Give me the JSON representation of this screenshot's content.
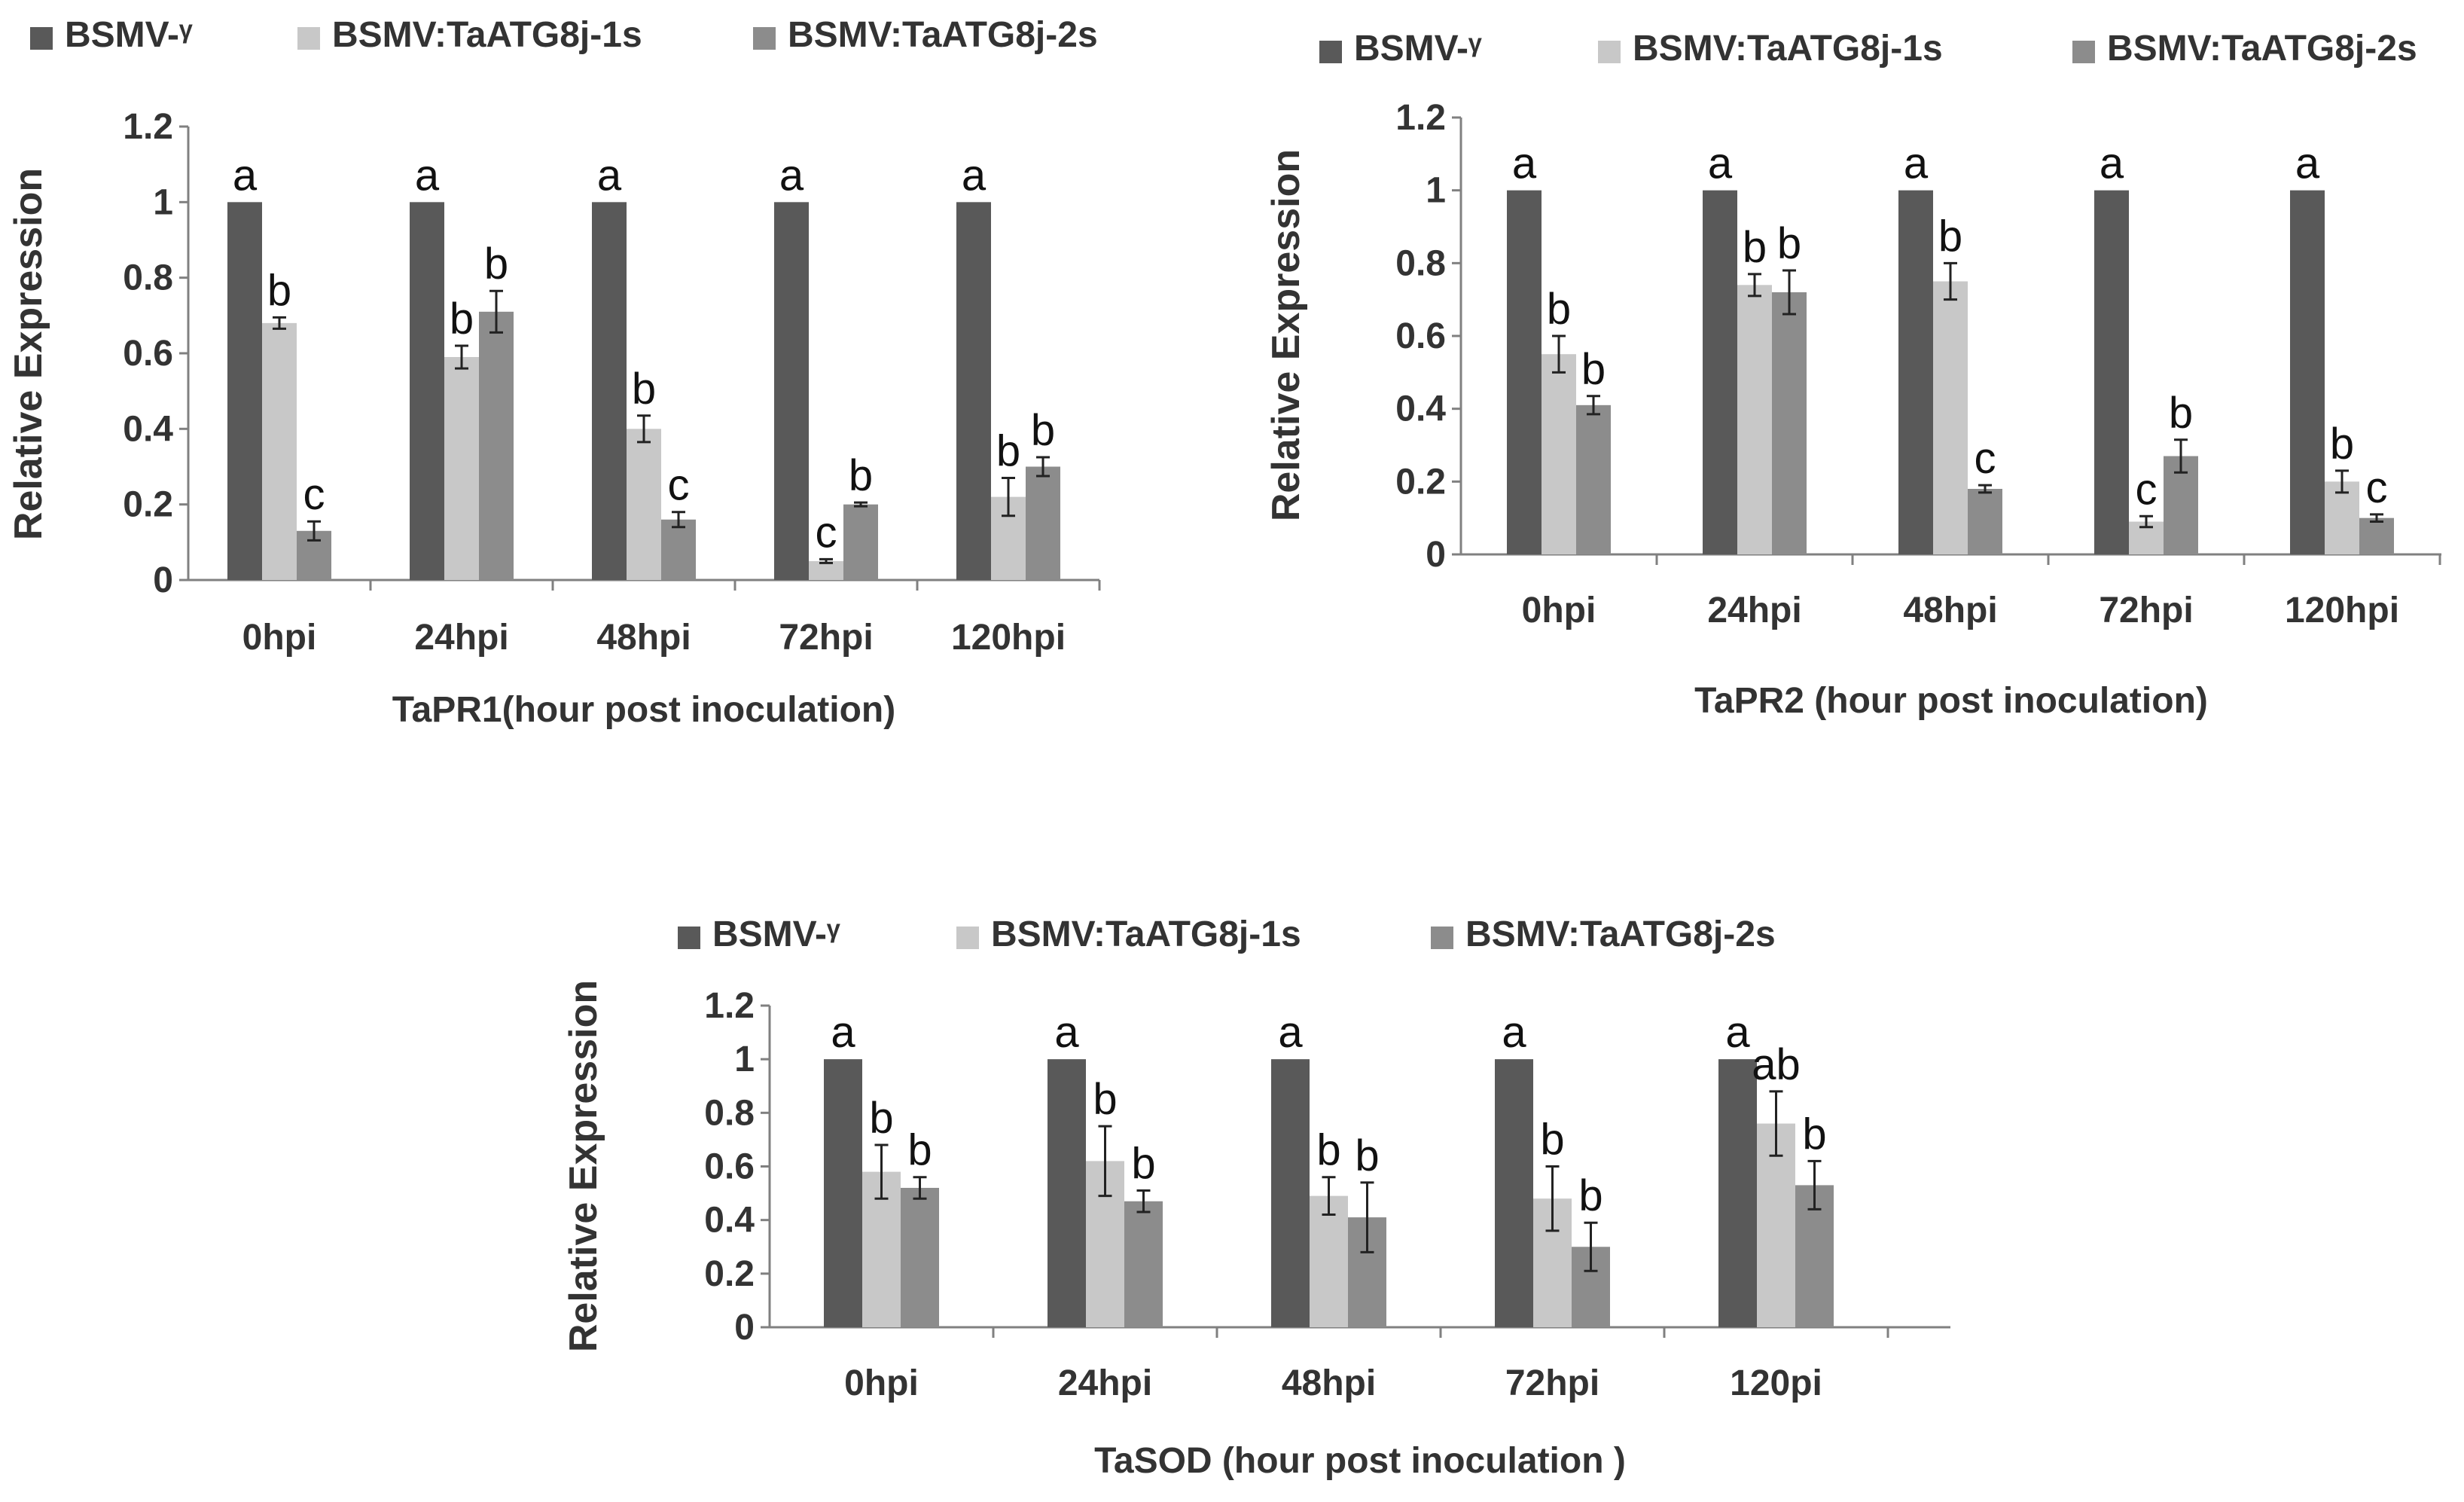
{
  "colors": {
    "series": [
      "#595959",
      "#c8c8c8",
      "#8c8c8c"
    ],
    "axis": "#808080",
    "text": "#333333",
    "background": "#ffffff"
  },
  "chart_data": [
    {
      "type": "bar",
      "title": "",
      "xlabel": "TaPR1(hour post inoculation)",
      "ylabel": "Relative Expression",
      "ylim": [
        0,
        1.2
      ],
      "yticks": [
        "0",
        "0.2",
        "0.4",
        "0.6",
        "0.8",
        "1",
        "1.2"
      ],
      "grid": false,
      "legend": "top-left",
      "categories": [
        "0hpi",
        "24hpi",
        "48hpi",
        "72hpi",
        "120hpi"
      ],
      "series": [
        {
          "name": "BSMV-ᵞ",
          "values": [
            1,
            1,
            1,
            1,
            1
          ],
          "errors": [
            0,
            0,
            0,
            0,
            0
          ],
          "labels": [
            "a",
            "a",
            "a",
            "a",
            "a"
          ]
        },
        {
          "name": "BSMV:TaATG8j-1s",
          "values": [
            0.68,
            0.59,
            0.4,
            0.05,
            0.22
          ],
          "errors": [
            0.015,
            0.03,
            0.035,
            0.005,
            0.05
          ],
          "labels": [
            "b",
            "b",
            "b",
            "c",
            "b"
          ]
        },
        {
          "name": "BSMV:TaATG8j-2s",
          "values": [
            0.13,
            0.71,
            0.16,
            0.2,
            0.3
          ],
          "errors": [
            0.025,
            0.055,
            0.02,
            0.005,
            0.025
          ],
          "labels": [
            "c",
            "b",
            "c",
            "b",
            "b"
          ]
        }
      ]
    },
    {
      "type": "bar",
      "title": "",
      "xlabel": "TaPR2 (hour post inoculation)",
      "ylabel": "Relative Expression",
      "ylim": [
        0,
        1.2
      ],
      "yticks": [
        "0",
        "0.2",
        "0.4",
        "0.6",
        "0.8",
        "1",
        "1.2"
      ],
      "grid": false,
      "legend": "top",
      "categories": [
        "0hpi",
        "24hpi",
        "48hpi",
        "72hpi",
        "120hpi"
      ],
      "series": [
        {
          "name": "BSMV-ᵞ",
          "values": [
            1,
            1,
            1,
            1,
            1
          ],
          "errors": [
            0,
            0,
            0,
            0,
            0
          ],
          "labels": [
            "a",
            "a",
            "a",
            "a",
            "a"
          ]
        },
        {
          "name": "BSMV:TaATG8j-1s",
          "values": [
            0.55,
            0.74,
            0.75,
            0.09,
            0.2
          ],
          "errors": [
            0.05,
            0.03,
            0.05,
            0.015,
            0.03
          ],
          "labels": [
            "b",
            "b",
            "b",
            "c",
            "b"
          ]
        },
        {
          "name": "BSMV:TaATG8j-2s",
          "values": [
            0.41,
            0.72,
            0.18,
            0.27,
            0.1
          ],
          "errors": [
            0.025,
            0.06,
            0.01,
            0.045,
            0.01
          ],
          "labels": [
            "b",
            "b",
            "c",
            "b",
            "c"
          ]
        }
      ]
    },
    {
      "type": "bar",
      "title": "",
      "xlabel": "TaSOD (hour post inoculation )",
      "ylabel": "Relative Expression",
      "ylim": [
        0,
        1.2
      ],
      "yticks": [
        "0",
        "0.2",
        "0.4",
        "0.6",
        "0.8",
        "1",
        "1.2"
      ],
      "grid": false,
      "legend": "top",
      "categories": [
        "0hpi",
        "24hpi",
        "48hpi",
        "72hpi",
        "120pi"
      ],
      "series": [
        {
          "name": "BSMV-ᵞ",
          "values": [
            1,
            1,
            1,
            1,
            1
          ],
          "errors": [
            0,
            0,
            0,
            0,
            0
          ],
          "labels": [
            "a",
            "a",
            "a",
            "a",
            "a"
          ]
        },
        {
          "name": "BSMV:TaATG8j-1s",
          "values": [
            0.58,
            0.62,
            0.49,
            0.48,
            0.76
          ],
          "errors": [
            0.1,
            0.13,
            0.07,
            0.12,
            0.12
          ],
          "labels": [
            "b",
            "b",
            "b",
            "b",
            "ab"
          ]
        },
        {
          "name": "BSMV:TaATG8j-2s",
          "values": [
            0.52,
            0.47,
            0.41,
            0.3,
            0.53
          ],
          "errors": [
            0.04,
            0.04,
            0.13,
            0.09,
            0.09
          ],
          "labels": [
            "b",
            "b",
            "b",
            "b",
            "b"
          ]
        }
      ]
    }
  ]
}
